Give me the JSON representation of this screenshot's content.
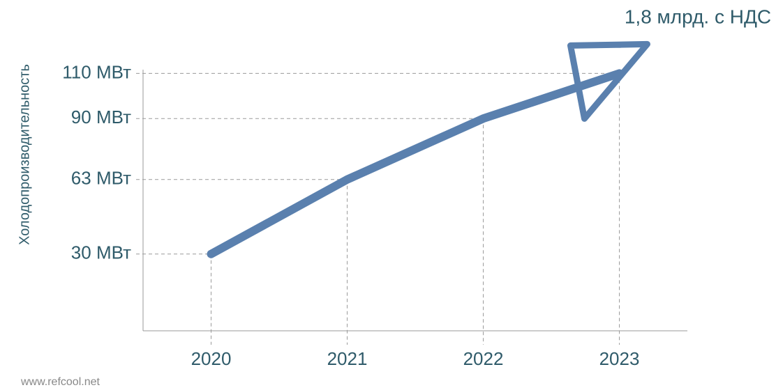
{
  "chart_data": {
    "type": "line",
    "y_label": "Холодопроизводительность",
    "annotation": "1,8 млрд. с НДС",
    "source": "www.refcool.net",
    "categories": [
      "2020",
      "2021",
      "2022",
      "2023"
    ],
    "values": [
      30,
      63,
      90,
      110
    ],
    "color": "#5a80ae",
    "ylim": [
      -4,
      124
    ],
    "yticks": [
      {
        "value": 30,
        "label": "30 МВт"
      },
      {
        "value": 63,
        "label": "63 МВт"
      },
      {
        "value": 90,
        "label": "90 МВт"
      },
      {
        "value": 110,
        "label": "110 МВт"
      }
    ],
    "grid": true
  }
}
